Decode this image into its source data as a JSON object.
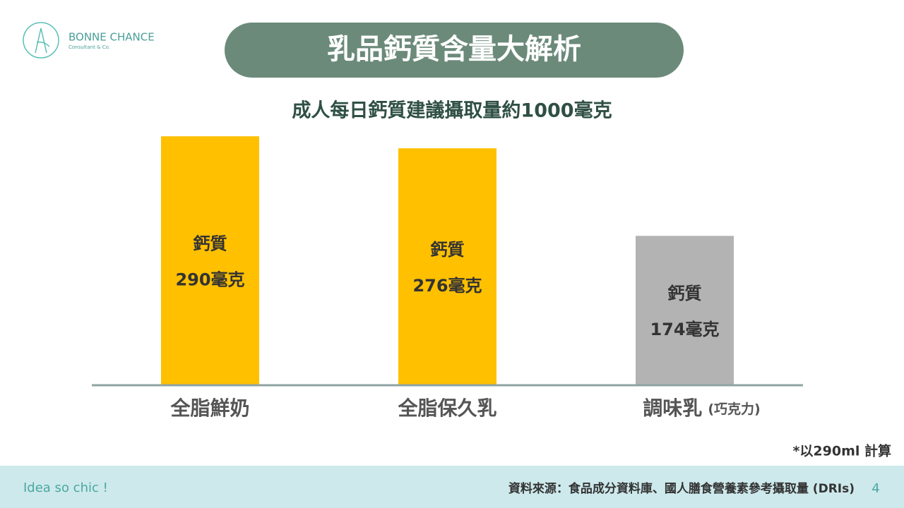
{
  "brand": {
    "name": "BONNE CHANCE",
    "tagline": "Consultant & Co."
  },
  "chart_data": {
    "type": "bar",
    "title": "乳品鈣質含量大解析",
    "subtitle": "成人每日鈣質建議攝取量約1000毫克",
    "categories": [
      "全脂鮮奶",
      "全脂保久乳",
      "調味乳"
    ],
    "category_notes": [
      null,
      null,
      "(巧克力)"
    ],
    "values": [
      290,
      276,
      174
    ],
    "value_labels": [
      "290毫克",
      "276毫克",
      "174毫克"
    ],
    "value_label_heading": "鈣質",
    "colors": [
      "#ffc000",
      "#ffc000",
      "#b3b3b3"
    ],
    "ylim": [
      0,
      300
    ],
    "footnote": "*以290ml 計算"
  },
  "footer": {
    "slogan": "Idea so chic !",
    "source": "資料來源：食品成分資料庫、國人膳食營養素參考攝取量 (DRIs)",
    "page": 4
  }
}
